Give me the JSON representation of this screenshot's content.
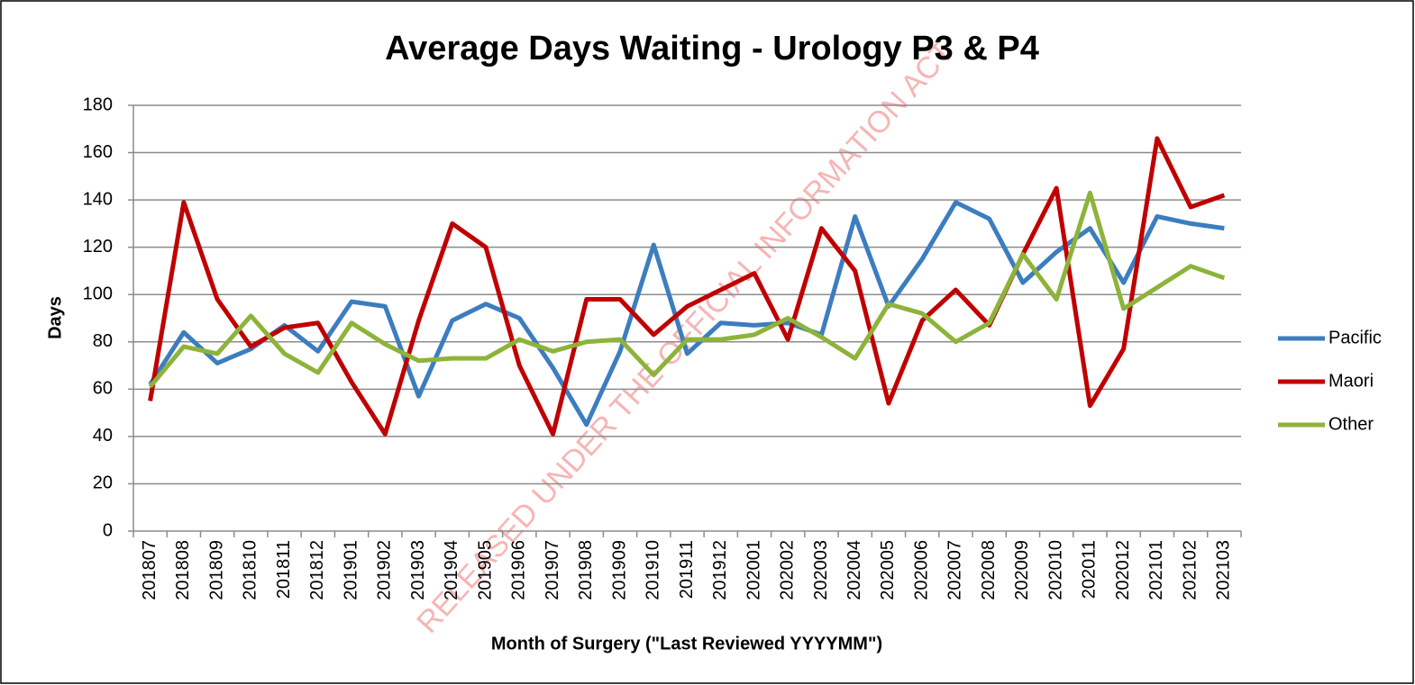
{
  "chart_data": {
    "type": "line",
    "title": "Average Days Waiting - Urology P3 & P4",
    "x_label": "Month of Surgery (\"Last Reviewed YYYYMM\")",
    "y_label": "Days",
    "watermark": "RELEASED UNDER THE OFFICIAL INFORMATION ACT",
    "categories": [
      "201807",
      "201808",
      "201809",
      "201810",
      "201811",
      "201812",
      "201901",
      "201902",
      "201903",
      "201904",
      "201905",
      "201906",
      "201907",
      "201908",
      "201909",
      "201910",
      "201911",
      "201912",
      "202001",
      "202002",
      "202003",
      "202004",
      "202005",
      "202006",
      "202007",
      "202008",
      "202009",
      "202010",
      "202011",
      "202012",
      "202101",
      "202102",
      "202103"
    ],
    "series": [
      {
        "name": "Pacific",
        "color": "#3c7dbf",
        "values": [
          62,
          84,
          71,
          77,
          87,
          76,
          97,
          95,
          57,
          89,
          96,
          90,
          69,
          45,
          76,
          121,
          75,
          88,
          87,
          88,
          83,
          133,
          95,
          115,
          139,
          132,
          105,
          118,
          128,
          105,
          133,
          130,
          128
        ]
      },
      {
        "name": "Maori",
        "color": "#c00000",
        "values": [
          55,
          139,
          98,
          78,
          86,
          88,
          63,
          41,
          89,
          130,
          120,
          70,
          41,
          98,
          98,
          83,
          95,
          102,
          109,
          81,
          128,
          110,
          54,
          89,
          102,
          87,
          117,
          145,
          53,
          77,
          166,
          137,
          142
        ]
      },
      {
        "name": "Other",
        "color": "#8db33a",
        "values": [
          61,
          78,
          75,
          91,
          75,
          67,
          88,
          79,
          72,
          73,
          73,
          81,
          76,
          80,
          81,
          66,
          81,
          81,
          83,
          90,
          82,
          73,
          96,
          92,
          80,
          88,
          117,
          98,
          143,
          94,
          103,
          112,
          107
        ]
      }
    ],
    "ylim": [
      0,
      180
    ],
    "yticks": [
      0,
      20,
      40,
      60,
      80,
      100,
      120,
      140,
      160,
      180
    ],
    "grid": true,
    "legend": "right"
  }
}
